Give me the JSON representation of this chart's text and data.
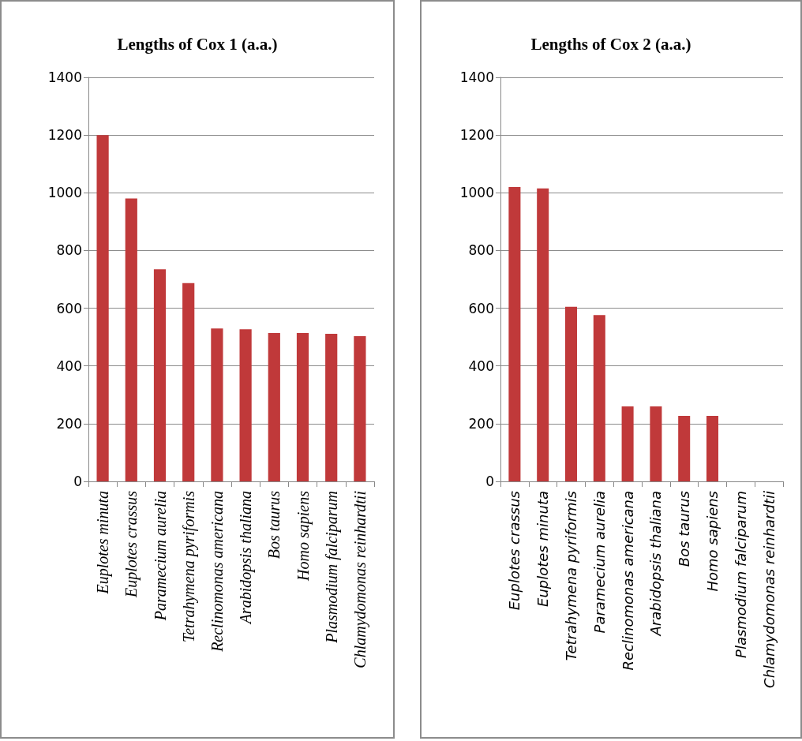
{
  "chart_data": [
    {
      "type": "bar",
      "title": "Lengths of Cox 1 (a.a.)",
      "categories": [
        "Euplotes minuta",
        "Euplotes crassus",
        "Paramecium aurelia",
        "Tetrahymena pyriformis",
        "Reclinomonas americana",
        "Arabidopsis thaliana",
        "Bos taurus",
        "Homo sapiens",
        "Plasmodium falciparum",
        "Chlamydomonas reinhardtii"
      ],
      "values": [
        1200,
        980,
        735,
        687,
        530,
        527,
        514,
        514,
        511,
        503
      ],
      "color": "#c0393a",
      "ylim": [
        0,
        1400
      ],
      "yticks": [
        0,
        200,
        400,
        600,
        800,
        1000,
        1200,
        1400
      ],
      "grid": "y"
    },
    {
      "type": "bar",
      "title": "Lengths of Cox 2 (a.a.)",
      "categories": [
        "Euplotes crassus",
        "Euplotes minuta",
        "Tetrahymena pyriformis",
        "Paramecium aurelia",
        "Reclinomonas americana",
        "Arabidopsis thaliana",
        "Bos taurus",
        "Homo sapiens",
        "Plasmodium falciparum",
        "Chlamydomonas reinhardtii"
      ],
      "values": [
        1020,
        1015,
        605,
        576,
        260,
        260,
        227,
        227,
        null,
        null
      ],
      "color": "#c0393a",
      "ylim": [
        0,
        1400
      ],
      "yticks": [
        0,
        200,
        400,
        600,
        800,
        1000,
        1200,
        1400
      ],
      "grid": "y"
    }
  ]
}
